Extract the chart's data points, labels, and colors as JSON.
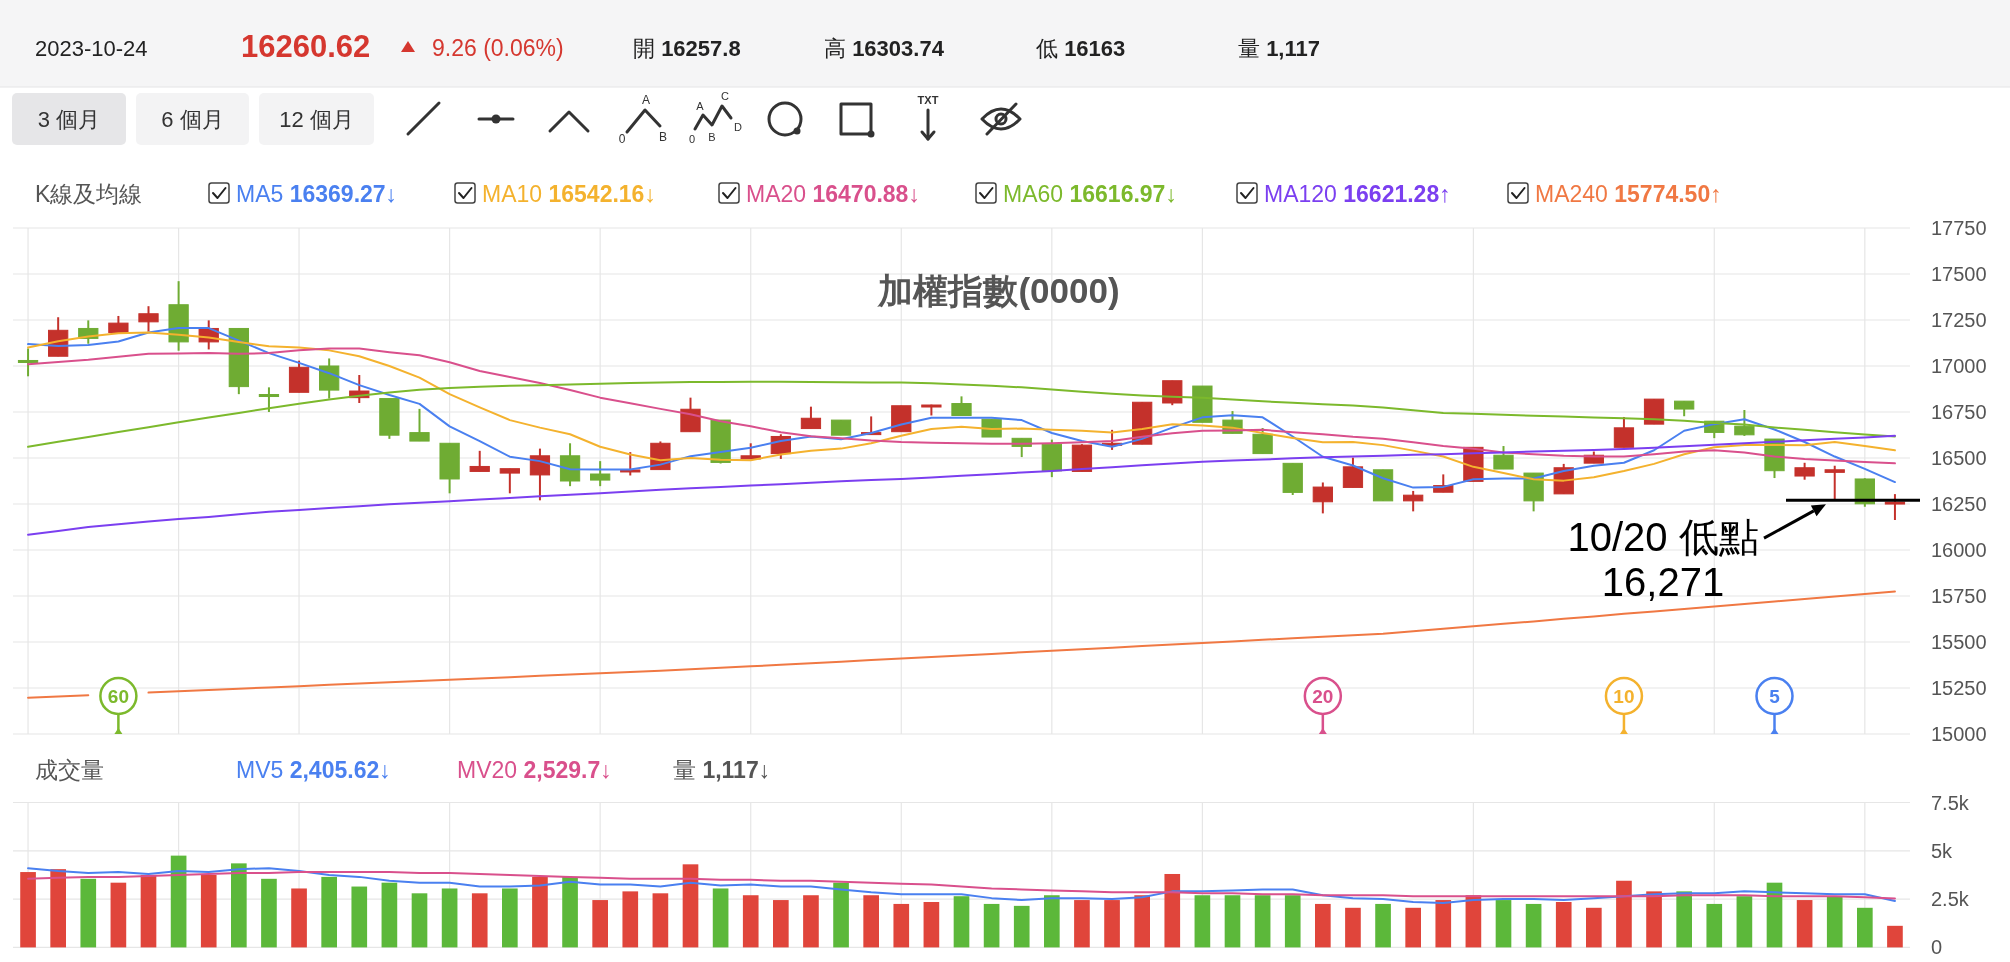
{
  "chart_data": [
    {
      "type": "other",
      "annotations": [
        "2023-10-24",
        "16260.62",
        "9.26 (0.06%)",
        "開 16257.8",
        "高 16303.74",
        "低 16163",
        "量 1,117",
        "3 個月",
        "6 個月",
        "12 個月",
        "A",
        "0",
        "B",
        "A",
        "C",
        "0",
        "B",
        "D",
        "TXT"
      ]
    },
    {
      "type": "candlestick",
      "title": "加權指數(0000)",
      "legend_title": "K線及均線",
      "legend": "top left",
      "grid": true,
      "categories": [
        null,
        null,
        null,
        null,
        null,
        null,
        null,
        null,
        null,
        null,
        null,
        null,
        null,
        null,
        null,
        null,
        null,
        null,
        null,
        null,
        null,
        null,
        null,
        null,
        null,
        null,
        null,
        null,
        null,
        null,
        null,
        null,
        null,
        null,
        null,
        null,
        null,
        null,
        null,
        null,
        null,
        null,
        null,
        null,
        null,
        null,
        null,
        null,
        null,
        null,
        null,
        null,
        null,
        null,
        null,
        null,
        null,
        null,
        null,
        null,
        null,
        null,
        null
      ],
      "ohlc": [
        [
          17030,
          17095,
          16944,
          17025
        ],
        [
          17053,
          17265,
          17053,
          17194
        ],
        [
          17204,
          17248,
          17121,
          17150
        ],
        [
          17182,
          17272,
          17182,
          17233
        ],
        [
          17240,
          17325,
          17187,
          17284
        ],
        [
          17333,
          17461,
          17083,
          17131
        ],
        [
          17131,
          17248,
          17090,
          17204
        ],
        [
          17204,
          17204,
          16847,
          16888
        ],
        [
          16845,
          16884,
          16750,
          16840
        ],
        [
          16857,
          17029,
          16857,
          16993
        ],
        [
          17000,
          17041,
          16823,
          16869
        ],
        [
          16828,
          16951,
          16799,
          16864
        ],
        [
          16823,
          16823,
          16604,
          16624
        ],
        [
          16638,
          16767,
          16592,
          16592
        ],
        [
          16580,
          16580,
          16308,
          16386
        ],
        [
          16427,
          16539,
          16427,
          16454
        ],
        [
          16418,
          16442,
          16308,
          16442
        ],
        [
          16408,
          16551,
          16270,
          16512
        ],
        [
          16512,
          16580,
          16347,
          16375
        ],
        [
          16413,
          16483,
          16347,
          16380
        ],
        [
          16427,
          16532,
          16405,
          16435
        ],
        [
          16437,
          16590,
          16437,
          16580
        ],
        [
          16643,
          16828,
          16643,
          16765
        ],
        [
          16706,
          16706,
          16470,
          16476
        ],
        [
          16495,
          16580,
          16495,
          16512
        ],
        [
          16524,
          16629,
          16495,
          16617
        ],
        [
          16660,
          16779,
          16660,
          16716
        ],
        [
          16706,
          16706,
          16624,
          16624
        ],
        [
          16631,
          16726,
          16631,
          16638
        ],
        [
          16643,
          16784,
          16643,
          16784
        ],
        [
          16779,
          16790,
          16731,
          16788
        ],
        [
          16796,
          16835,
          16731,
          16731
        ],
        [
          16711,
          16711,
          16614,
          16614
        ],
        [
          16607,
          16607,
          16505,
          16563
        ],
        [
          16575,
          16600,
          16396,
          16430
        ],
        [
          16427,
          16575,
          16427,
          16570
        ],
        [
          16573,
          16653,
          16544,
          16580
        ],
        [
          16575,
          16803,
          16575,
          16803
        ],
        [
          16799,
          16920,
          16787,
          16920
        ],
        [
          16891,
          16891,
          16694,
          16694
        ],
        [
          16706,
          16755,
          16634,
          16634
        ],
        [
          16629,
          16663,
          16524,
          16524
        ],
        [
          16471,
          16471,
          16299,
          16313
        ],
        [
          16262,
          16367,
          16199,
          16342
        ],
        [
          16340,
          16502,
          16340,
          16452
        ],
        [
          16436,
          16436,
          16267,
          16267
        ],
        [
          16267,
          16321,
          16210,
          16298
        ],
        [
          16314,
          16411,
          16314,
          16350
        ],
        [
          16373,
          16558,
          16373,
          16558
        ],
        [
          16515,
          16565,
          16440,
          16440
        ],
        [
          16418,
          16418,
          16210,
          16267
        ],
        [
          16305,
          16468,
          16305,
          16447
        ],
        [
          16472,
          16535,
          16472,
          16515
        ],
        [
          16558,
          16723,
          16558,
          16664
        ],
        [
          16684,
          16820,
          16684,
          16820
        ],
        [
          16809,
          16809,
          16727,
          16766
        ],
        [
          16700,
          16700,
          16608,
          16639
        ],
        [
          16673,
          16761,
          16620,
          16626
        ],
        [
          16603,
          16603,
          16391,
          16431
        ],
        [
          16402,
          16474,
          16382,
          16447
        ],
        [
          16422,
          16458,
          16271,
          16436
        ],
        [
          16386,
          16390,
          16235,
          16251
        ],
        [
          16257.8,
          16303.74,
          16163,
          16260.62
        ]
      ],
      "colors": [
        "#6fac33",
        "#c4312b",
        "#6fac33",
        "#c4312b",
        "#c4312b",
        "#6fac33",
        "#c4312b",
        "#6fac33",
        "#6fac33",
        "#c4312b",
        "#6fac33",
        "#c4312b",
        "#6fac33",
        "#6fac33",
        "#6fac33",
        "#c4312b",
        "#c4312b",
        "#c4312b",
        "#6fac33",
        "#6fac33",
        "#c4312b",
        "#c4312b",
        "#c4312b",
        "#6fac33",
        "#c4312b",
        "#c4312b",
        "#c4312b",
        "#6fac33",
        "#c4312b",
        "#c4312b",
        "#c4312b",
        "#6fac33",
        "#6fac33",
        "#6fac33",
        "#6fac33",
        "#c4312b",
        "#c4312b",
        "#c4312b",
        "#c4312b",
        "#6fac33",
        "#6fac33",
        "#6fac33",
        "#6fac33",
        "#c4312b",
        "#c4312b",
        "#6fac33",
        "#c4312b",
        "#c4312b",
        "#c4312b",
        "#6fac33",
        "#6fac33",
        "#c4312b",
        "#c4312b",
        "#c4312b",
        "#c4312b",
        "#6fac33",
        "#6fac33",
        "#6fac33",
        "#6fac33",
        "#c4312b",
        "#c4312b",
        "#6fac33",
        "#c4312b"
      ],
      "series": [
        {
          "name": "MA5 16369.27↓",
          "type": "line",
          "color": "#4a80f0",
          "values": [
            17119,
            17109,
            17114,
            17133,
            17182,
            17206,
            17206,
            17138,
            17070,
            17017,
            16961,
            16896,
            16842,
            16794,
            16672,
            16592,
            16507,
            16483,
            16439,
            16437,
            16437,
            16464,
            16510,
            16532,
            16556,
            16592,
            16617,
            16602,
            16636,
            16682,
            16719,
            16719,
            16719,
            16706,
            16636,
            16592,
            16561,
            16604,
            16665,
            16721,
            16733,
            16721,
            16617,
            16507,
            16459,
            16390,
            16339,
            16343,
            16384,
            16389,
            16389,
            16429,
            16458,
            16474,
            16542,
            16648,
            16684,
            16711,
            16655,
            16587,
            16508,
            16441,
            16369.27
          ]
        },
        {
          "name": "MA10 16542.16↓",
          "type": "line",
          "color": "#f4b22e",
          "values": [
            17100,
            17135,
            17160,
            17178,
            17182,
            17170,
            17155,
            17130,
            17107,
            17100,
            17085,
            17053,
            17000,
            16937,
            16847,
            16775,
            16706,
            16665,
            16629,
            16561,
            16519,
            16488,
            16500,
            16490,
            16488,
            16519,
            16539,
            16551,
            16580,
            16621,
            16658,
            16670,
            16658,
            16660,
            16653,
            16648,
            16638,
            16658,
            16684,
            16677,
            16665,
            16636,
            16609,
            16585,
            16587,
            16570,
            16540,
            16508,
            16452,
            16418,
            16384,
            16377,
            16395,
            16429,
            16468,
            16520,
            16558,
            16571,
            16571,
            16569,
            16587,
            16565,
            16542.16
          ]
        },
        {
          "name": "MA20 16470.88↓",
          "type": "line",
          "color": "#d9508c",
          "values": [
            17010,
            17022,
            17034,
            17050,
            17066,
            17068,
            17070,
            17066,
            17070,
            17085,
            17095,
            17095,
            17075,
            17058,
            17020,
            16973,
            16940,
            16908,
            16870,
            16828,
            16798,
            16767,
            16738,
            16700,
            16672,
            16640,
            16618,
            16607,
            16595,
            16587,
            16583,
            16580,
            16578,
            16578,
            16580,
            16585,
            16592,
            16615,
            16635,
            16648,
            16650,
            16653,
            16640,
            16629,
            16615,
            16605,
            16585,
            16565,
            16550,
            16530,
            16520,
            16512,
            16508,
            16508,
            16520,
            16535,
            16542,
            16530,
            16508,
            16495,
            16486,
            16478,
            16470.88
          ]
        },
        {
          "name": "MA60 16616.97↓",
          "type": "line",
          "color": "#7cb92c",
          "values": [
            16561,
            16588,
            16614,
            16641,
            16667,
            16694,
            16720,
            16745,
            16770,
            16795,
            16818,
            16838,
            16856,
            16871,
            16880,
            16887,
            16893,
            16896,
            16900,
            16904,
            16908,
            16911,
            16913,
            16913,
            16914,
            16914,
            16913,
            16912,
            16911,
            16910,
            16906,
            16900,
            16893,
            16884,
            16872,
            16860,
            16849,
            16840,
            16833,
            16828,
            16818,
            16808,
            16800,
            16792,
            16786,
            16775,
            16760,
            16745,
            16740,
            16735,
            16730,
            16726,
            16720,
            16716,
            16710,
            16703,
            16690,
            16682,
            16666,
            16653,
            16640,
            16628,
            16616.97
          ]
        },
        {
          "name": "MA120 16621.28↑",
          "type": "line",
          "color": "#7b3ff0",
          "values": [
            16083,
            16103,
            16125,
            16140,
            16155,
            16168,
            16180,
            16194,
            16208,
            16218,
            16228,
            16238,
            16248,
            16257,
            16265,
            16274,
            16283,
            16292,
            16300,
            16309,
            16318,
            16327,
            16335,
            16342,
            16350,
            16358,
            16366,
            16373,
            16380,
            16386,
            16394,
            16403,
            16412,
            16421,
            16430,
            16440,
            16450,
            16460,
            16470,
            16480,
            16486,
            16492,
            16498,
            16504,
            16508,
            16512,
            16517,
            16521,
            16526,
            16530,
            16535,
            16539,
            16544,
            16549,
            16556,
            16564,
            16572,
            16580,
            16588,
            16596,
            16604,
            16612,
            16621.28
          ]
        },
        {
          "name": "MA240 15774.50↑",
          "type": "line",
          "color": "#f07843",
          "values": [
            15197,
            15204,
            15211,
            null,
            15225,
            15232,
            15239,
            15246,
            15253,
            15260,
            15267,
            15274,
            15281,
            15288,
            15295,
            15302,
            15309,
            15316,
            15323,
            15330,
            15337,
            15344,
            15352,
            15360,
            15368,
            15376,
            15385,
            15393,
            15402,
            15410,
            15418,
            15427,
            15435,
            15444,
            15452,
            15461,
            15469,
            15478,
            15486,
            15495,
            15503,
            15512,
            15520,
            15528,
            15537,
            15545,
            15558,
            15572,
            15585,
            15599,
            15612,
            15626,
            15639,
            15653,
            15666,
            15680,
            15693,
            15707,
            15720,
            15734,
            15747,
            15761,
            15774.5
          ]
        }
      ],
      "ylim": [
        15000,
        17750
      ],
      "yticks": [
        15000,
        15250,
        15500,
        15750,
        16000,
        16250,
        16500,
        16750,
        17000,
        17250,
        17500,
        17750
      ],
      "annotations": [
        "60",
        "20",
        "10",
        "5"
      ],
      "ref_lines": [
        {
          "axis": "y",
          "value": 16271,
          "label": "10/20 低點\n16,271",
          "color": "#000000"
        }
      ]
    },
    {
      "type": "bar",
      "legend_title": "成交量",
      "legend": "top left",
      "grid": true,
      "categories": [
        null,
        null,
        null,
        null,
        null,
        null,
        null,
        null,
        null,
        null,
        null,
        null,
        null,
        null,
        null,
        null,
        null,
        null,
        null,
        null,
        null,
        null,
        null,
        null,
        null,
        null,
        null,
        null,
        null,
        null,
        null,
        null,
        null,
        null,
        null,
        null,
        null,
        null,
        null,
        null,
        null,
        null,
        null,
        null,
        null,
        null,
        null,
        null,
        null,
        null,
        null,
        null,
        null,
        null,
        null,
        null,
        null,
        null,
        null,
        null,
        null,
        null,
        null
      ],
      "series": [
        {
          "type": "bar",
          "colors": [
            "#e0453b",
            "#e0453b",
            "#5cb83a",
            "#e0453b",
            "#e0453b",
            "#5cb83a",
            "#e0453b",
            "#5cb83a",
            "#5cb83a",
            "#e0453b",
            "#5cb83a",
            "#5cb83a",
            "#5cb83a",
            "#5cb83a",
            "#5cb83a",
            "#e0453b",
            "#5cb83a",
            "#e0453b",
            "#5cb83a",
            "#e0453b",
            "#e0453b",
            "#e0453b",
            "#e0453b",
            "#5cb83a",
            "#e0453b",
            "#e0453b",
            "#e0453b",
            "#5cb83a",
            "#e0453b",
            "#e0453b",
            "#e0453b",
            "#5cb83a",
            "#5cb83a",
            "#5cb83a",
            "#5cb83a",
            "#e0453b",
            "#e0453b",
            "#e0453b",
            "#e0453b",
            "#5cb83a",
            "#5cb83a",
            "#5cb83a",
            "#5cb83a",
            "#e0453b",
            "#e0453b",
            "#5cb83a",
            "#e0453b",
            "#e0453b",
            "#e0453b",
            "#5cb83a",
            "#5cb83a",
            "#e0453b",
            "#e0453b",
            "#e0453b",
            "#e0453b",
            "#5cb83a",
            "#5cb83a",
            "#5cb83a",
            "#5cb83a",
            "#e0453b",
            "#5cb83a",
            "#5cb83a",
            "#e0453b"
          ],
          "values": [
            3900,
            4050,
            3550,
            3350,
            3750,
            4750,
            3750,
            4350,
            3550,
            3050,
            3650,
            3150,
            3350,
            2800,
            3050,
            2800,
            3050,
            3650,
            3650,
            2450,
            2900,
            2800,
            4300,
            3050,
            2700,
            2450,
            2700,
            3350,
            2700,
            2250,
            2350,
            2650,
            2250,
            2150,
            2700,
            2450,
            2450,
            2700,
            3800,
            2700,
            2700,
            2700,
            2700,
            2250,
            2050,
            2250,
            2050,
            2450,
            2700,
            2450,
            2250,
            2350,
            2050,
            3450,
            2900,
            2900,
            2250,
            2650,
            3350,
            2450,
            2650,
            2050,
            1117
          ]
        },
        {
          "name": "MV5 2,405.62↓",
          "type": "line",
          "color": "#4a80f0",
          "values": [
            4100,
            3950,
            3850,
            3900,
            3800,
            3950,
            3900,
            4050,
            4100,
            3950,
            3750,
            3650,
            3450,
            3350,
            3350,
            3150,
            3150,
            3200,
            3400,
            3250,
            3250,
            3150,
            3350,
            3200,
            3250,
            3150,
            3150,
            3000,
            2850,
            2750,
            2750,
            2750,
            2550,
            2450,
            2550,
            2550,
            2500,
            2600,
            2900,
            2900,
            2950,
            3000,
            3000,
            2700,
            2550,
            2500,
            2350,
            2300,
            2450,
            2500,
            2500,
            2450,
            2550,
            2650,
            2750,
            2800,
            2800,
            2900,
            2850,
            2800,
            2750,
            2750,
            2405.62
          ]
        },
        {
          "name": "MV20 2,529.7↓",
          "type": "line",
          "color": "#d9508c",
          "values": [
            3550,
            3600,
            3650,
            3650,
            3700,
            3750,
            3800,
            3850,
            3850,
            3900,
            3900,
            3900,
            3900,
            3850,
            3850,
            3800,
            3750,
            3700,
            3650,
            3600,
            3550,
            3550,
            3550,
            3500,
            3500,
            3450,
            3450,
            3400,
            3350,
            3300,
            3250,
            3150,
            3050,
            3000,
            2950,
            2900,
            2850,
            2850,
            2850,
            2800,
            2800,
            2750,
            2750,
            2700,
            2700,
            2700,
            2650,
            2650,
            2650,
            2650,
            2650,
            2650,
            2650,
            2650,
            2650,
            2700,
            2700,
            2700,
            2650,
            2650,
            2650,
            2600,
            2529.7
          ]
        }
      ],
      "ylim": [
        0,
        7500
      ],
      "yticks": [
        0,
        {
          "value": 2500,
          "label": "2.5k"
        },
        {
          "value": 5000,
          "label": "5k"
        },
        {
          "value": 7500,
          "label": "7.5k"
        }
      ],
      "annotations": [
        "量 1,117↓"
      ]
    }
  ]
}
